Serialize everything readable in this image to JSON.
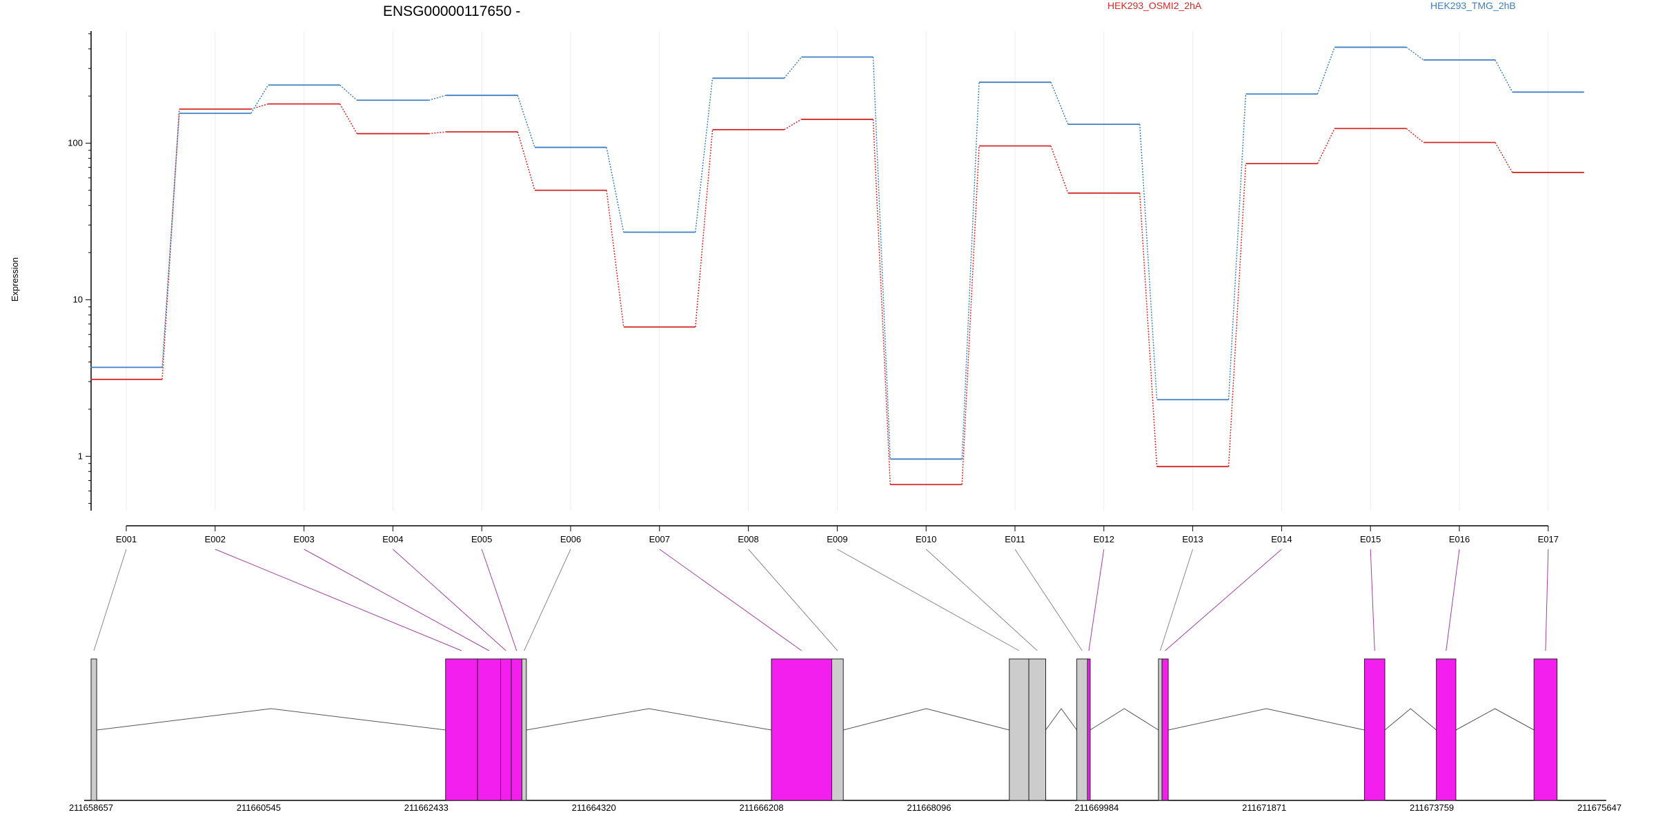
{
  "chart_data": {
    "type": "line",
    "title": "ENSG00000117650 -",
    "ylabel": "Expression",
    "yscale": "log",
    "ylim": [
      0.45,
      520
    ],
    "yticks": [
      {
        "value": 1,
        "label": "1"
      },
      {
        "value": 10,
        "label": "10"
      },
      {
        "value": 100,
        "label": "100"
      }
    ],
    "categories": [
      "E001",
      "E002",
      "E003",
      "E004",
      "E005",
      "E006",
      "E007",
      "E008",
      "E009",
      "E010",
      "E011",
      "E012",
      "E013",
      "E014",
      "E015",
      "E016",
      "E017"
    ],
    "grid": true,
    "legend_position": "top",
    "series": [
      {
        "name": "HEK293_OSMI2_2hA",
        "color": "#d62728",
        "values": [
          3.1,
          165,
          178,
          115,
          118,
          50,
          6.7,
          122,
          142,
          0.66,
          96,
          48,
          0.86,
          74,
          124,
          101,
          65
        ]
      },
      {
        "name": "HEK293_TMG_2hB",
        "color": "#3e7fc1",
        "values": [
          3.7,
          155,
          235,
          188,
          202,
          94,
          27,
          260,
          355,
          0.96,
          245,
          132,
          2.3,
          206,
          410,
          340,
          212
        ]
      }
    ],
    "gene_model": {
      "coordinates": [
        "211658657",
        "211660545",
        "211662433",
        "211664320",
        "211666208",
        "211668096",
        "211669984",
        "211671871",
        "211673759",
        "211675647"
      ],
      "coord_min": 211658657,
      "coord_max": 211675647,
      "exons": [
        {
          "label": "E001",
          "start": 211658657,
          "end": 211658720,
          "color": "#cccccc"
        },
        {
          "label": "E002",
          "start": 211662650,
          "end": 211663010,
          "color": "#f21fee"
        },
        {
          "label": "E003",
          "start": 211663010,
          "end": 211663270,
          "color": "#f21fee"
        },
        {
          "label": "E004",
          "start": 211663270,
          "end": 211663390,
          "color": "#f21fee"
        },
        {
          "label": "E005",
          "start": 211663390,
          "end": 211663510,
          "color": "#f21fee"
        },
        {
          "label": "E006",
          "start": 211663510,
          "end": 211663560,
          "color": "#cccccc"
        },
        {
          "label": "E007",
          "start": 211666320,
          "end": 211667000,
          "color": "#f21fee"
        },
        {
          "label": "E008",
          "start": 211667000,
          "end": 211667130,
          "color": "#cccccc"
        },
        {
          "label": "E009",
          "start": 211669000,
          "end": 211669220,
          "color": "#cccccc"
        },
        {
          "label": "E010",
          "start": 211669220,
          "end": 211669410,
          "color": "#cccccc"
        },
        {
          "label": "E011",
          "start": 211669760,
          "end": 211669880,
          "color": "#cccccc"
        },
        {
          "label": "E012",
          "start": 211669880,
          "end": 211669910,
          "color": "#f21fee"
        },
        {
          "label": "E013",
          "start": 211670680,
          "end": 211670720,
          "color": "#cccccc"
        },
        {
          "label": "E014",
          "start": 211670720,
          "end": 211670790,
          "color": "#f21fee"
        },
        {
          "label": "E015",
          "start": 211673000,
          "end": 211673230,
          "color": "#f21fee"
        },
        {
          "label": "E016",
          "start": 211673810,
          "end": 211674030,
          "color": "#f21fee"
        },
        {
          "label": "E017",
          "start": 211674910,
          "end": 211675170,
          "color": "#f21fee"
        }
      ],
      "introns": [
        [
          211658720,
          211662650
        ],
        [
          211663560,
          211666320
        ],
        [
          211667130,
          211669000
        ],
        [
          211669410,
          211669760
        ],
        [
          211669910,
          211670680
        ],
        [
          211670790,
          211673000
        ],
        [
          211673230,
          211673810
        ],
        [
          211674030,
          211674910
        ]
      ]
    }
  }
}
